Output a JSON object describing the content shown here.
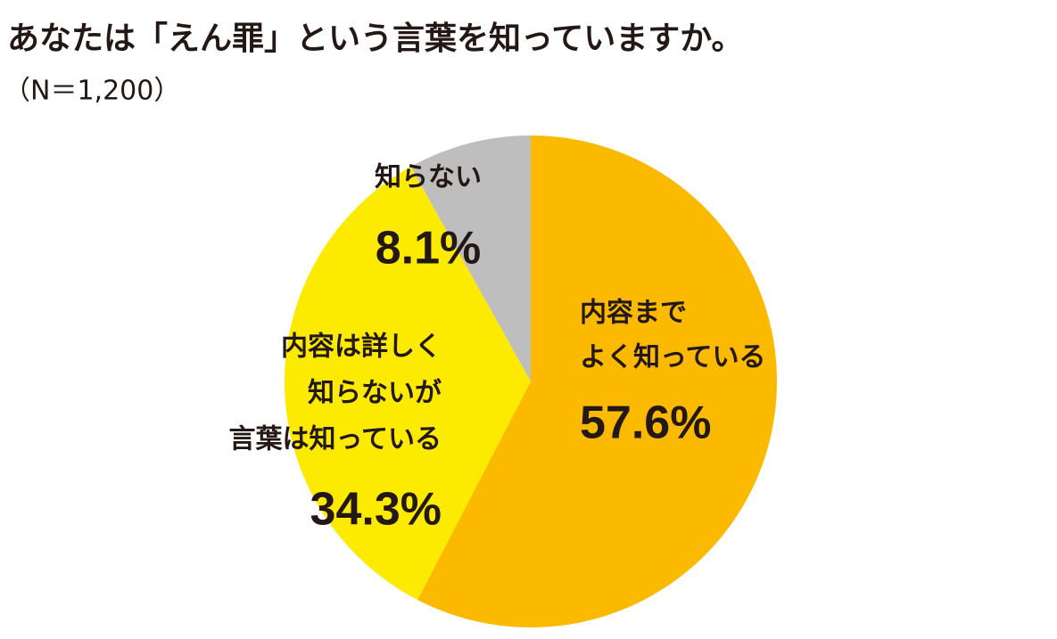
{
  "chart_data": {
    "type": "pie",
    "title": "あなたは「えん罪」という言葉を知っていますか。",
    "subtitle": "（N＝1,200）",
    "categories": [
      [
        "内容まで",
        "よく知っている"
      ],
      [
        "内容は詳しく",
        "知らないが",
        "言葉は知っている"
      ],
      [
        "知らない"
      ]
    ],
    "values": [
      57.6,
      34.3,
      8.1
    ],
    "value_labels": [
      "57.6%",
      "34.3%",
      "8.1%"
    ],
    "colors": [
      "#fbb900",
      "#fcea00",
      "#bebebe"
    ]
  }
}
